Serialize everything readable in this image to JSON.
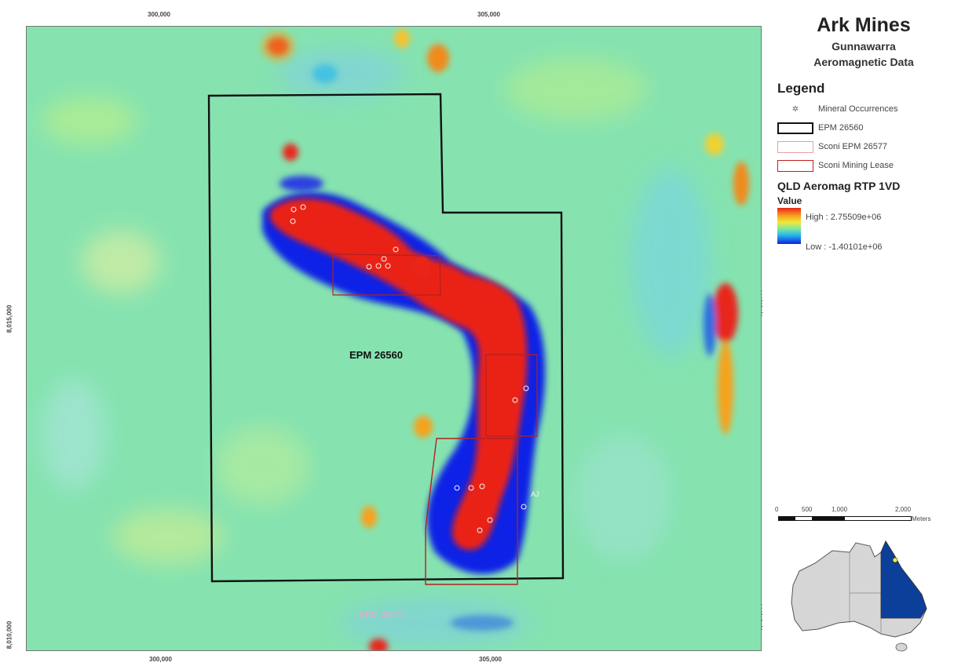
{
  "title": {
    "main": "Ark Mines",
    "line1": "Gunnawarra",
    "line2": "Aeromagnetic Data"
  },
  "axes": {
    "top": [
      "300,000",
      "305,000"
    ],
    "bottom": [
      "300,000",
      "305,000"
    ],
    "left": [
      "8,015,000",
      "8,010,000"
    ],
    "right": [
      "8,015,000",
      "8,010,000"
    ]
  },
  "map_labels": {
    "epm_main": "EPM 26560",
    "epm_sconi": "EPM 26577",
    "occurrence_aj": "AJ"
  },
  "legend": {
    "heading": "Legend",
    "items": [
      {
        "label": "Mineral Occurrences",
        "icon": "mineral-occurrence-icon"
      },
      {
        "label": "EPM 26560",
        "color": "#111111"
      },
      {
        "label": "Sconi EPM 26577",
        "color": "#e8a0a0"
      },
      {
        "label": "Sconi Mining Lease",
        "color": "#c02020"
      }
    ],
    "ramp_title": "QLD Aeromag RTP 1VD",
    "value_label": "Value",
    "high": "High : 2.75509e+06",
    "low": "Low : -1.40101e+06"
  },
  "scale": {
    "ticks": [
      "0",
      "500",
      "1,000",
      "2,000"
    ],
    "unit": "Meters"
  },
  "colors": {
    "background": "#86e3b0",
    "high": "#ea2418",
    "low": "#0b22e6",
    "qld_fill": "#0b3f9a",
    "land_fill": "#d6d6d6",
    "marker": "#f2ec2c"
  }
}
